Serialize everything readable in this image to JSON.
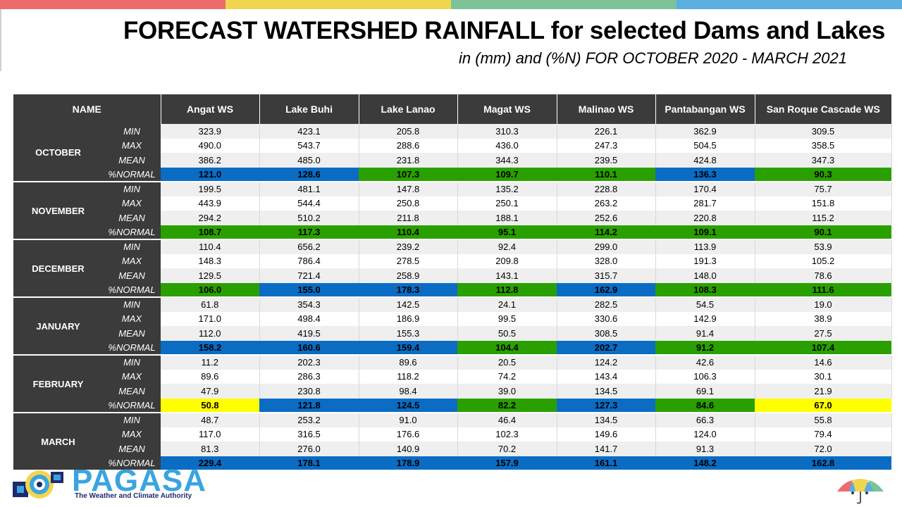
{
  "colors": {
    "topbar": [
      "#ef6b6b",
      "#f3d64f",
      "#7cc39a",
      "#5aaee0"
    ],
    "header_bg": "#3b3b3b",
    "green": "#2aa000",
    "blue": "#0b6cc4",
    "yellow": "#ffff00"
  },
  "title": "FORECAST WATERSHED RAINFALL  for selected Dams and Lakes",
  "subtitle": "in (mm) and (%N) FOR OCTOBER 2020 - MARCH 2021",
  "table": {
    "name_header": "NAME",
    "columns": [
      "Angat WS",
      "Lake Buhi",
      "Lake Lanao",
      "Magat WS",
      "Malinao WS",
      "Pantabangan WS",
      "San Roque Cascade WS"
    ],
    "stat_labels": [
      "MIN",
      "MAX",
      "MEAN",
      "%NORMAL"
    ],
    "months": [
      {
        "name": "OCTOBER",
        "min": [
          "323.9",
          "423.1",
          "205.8",
          "310.3",
          "226.1",
          "362.9",
          "309.5"
        ],
        "max": [
          "490.0",
          "543.7",
          "288.6",
          "436.0",
          "247.3",
          "504.5",
          "358.5"
        ],
        "mean": [
          "386.2",
          "485.0",
          "231.8",
          "344.3",
          "239.5",
          "424.8",
          "347.3"
        ],
        "normal": [
          "121.0",
          "128.6",
          "107.3",
          "109.7",
          "110.1",
          "136.3",
          "90.3"
        ],
        "normal_colors": [
          "blue",
          "blue",
          "green",
          "green",
          "green",
          "blue",
          "green"
        ]
      },
      {
        "name": "NOVEMBER",
        "min": [
          "199.5",
          "481.1",
          "147.8",
          "135.2",
          "228.8",
          "170.4",
          "75.7"
        ],
        "max": [
          "443.9",
          "544.4",
          "250.8",
          "250.1",
          "263.2",
          "281.7",
          "151.8"
        ],
        "mean": [
          "294.2",
          "510.2",
          "211.8",
          "188.1",
          "252.6",
          "220.8",
          "115.2"
        ],
        "normal": [
          "108.7",
          "117.3",
          "110.4",
          "95.1",
          "114.2",
          "109.1",
          "90.1"
        ],
        "normal_colors": [
          "green",
          "green",
          "green",
          "green",
          "green",
          "green",
          "green"
        ]
      },
      {
        "name": "DECEMBER",
        "min": [
          "110.4",
          "656.2",
          "239.2",
          "92.4",
          "299.0",
          "113.9",
          "53.9"
        ],
        "max": [
          "148.3",
          "786.4",
          "278.5",
          "209.8",
          "328.0",
          "191.3",
          "105.2"
        ],
        "mean": [
          "129.5",
          "721.4",
          "258.9",
          "143.1",
          "315.7",
          "148.0",
          "78.6"
        ],
        "normal": [
          "106.0",
          "155.0",
          "178.3",
          "112.8",
          "162.9",
          "108.3",
          "111.6"
        ],
        "normal_colors": [
          "green",
          "blue",
          "blue",
          "green",
          "blue",
          "green",
          "green"
        ]
      },
      {
        "name": "JANUARY",
        "min": [
          "61.8",
          "354.3",
          "142.5",
          "24.1",
          "282.5",
          "54.5",
          "19.0"
        ],
        "max": [
          "171.0",
          "498.4",
          "186.9",
          "99.5",
          "330.6",
          "142.9",
          "38.9"
        ],
        "mean": [
          "112.0",
          "419.5",
          "155.3",
          "50.5",
          "308.5",
          "91.4",
          "27.5"
        ],
        "normal": [
          "158.2",
          "160.6",
          "159.4",
          "104.4",
          "202.7",
          "91.2",
          "107.4"
        ],
        "normal_colors": [
          "blue",
          "blue",
          "blue",
          "green",
          "blue",
          "green",
          "green"
        ]
      },
      {
        "name": "FEBRUARY",
        "min": [
          "11.2",
          "202.3",
          "89.6",
          "20.5",
          "124.2",
          "42.6",
          "14.6"
        ],
        "max": [
          "89.6",
          "286.3",
          "118.2",
          "74.2",
          "143.4",
          "106.3",
          "30.1"
        ],
        "mean": [
          "47.9",
          "230.8",
          "98.4",
          "39.0",
          "134.5",
          "69.1",
          "21.9"
        ],
        "normal": [
          "50.8",
          "121.8",
          "124.5",
          "82.2",
          "127.3",
          "84.6",
          "67.0"
        ],
        "normal_colors": [
          "yellow",
          "blue",
          "blue",
          "green",
          "blue",
          "green",
          "yellow"
        ]
      },
      {
        "name": "MARCH",
        "min": [
          "48.7",
          "253.2",
          "91.0",
          "46.4",
          "134.5",
          "66.3",
          "55.8"
        ],
        "max": [
          "117.0",
          "316.5",
          "176.6",
          "102.3",
          "149.6",
          "124.0",
          "79.4"
        ],
        "mean": [
          "81.3",
          "276.0",
          "140.9",
          "70.2",
          "141.7",
          "91.3",
          "72.0"
        ],
        "normal": [
          "229.4",
          "178.1",
          "178.9",
          "157.9",
          "161.1",
          "148.2",
          "162.8"
        ],
        "normal_colors": [
          "blue",
          "blue",
          "blue",
          "blue",
          "blue",
          "blue",
          "blue"
        ]
      }
    ]
  },
  "logo": {
    "name": "PAGASA",
    "tagline": "The Weather and Climate Authority"
  },
  "icons": [
    "pagasa-seal-icon",
    "umbrella-icon"
  ]
}
